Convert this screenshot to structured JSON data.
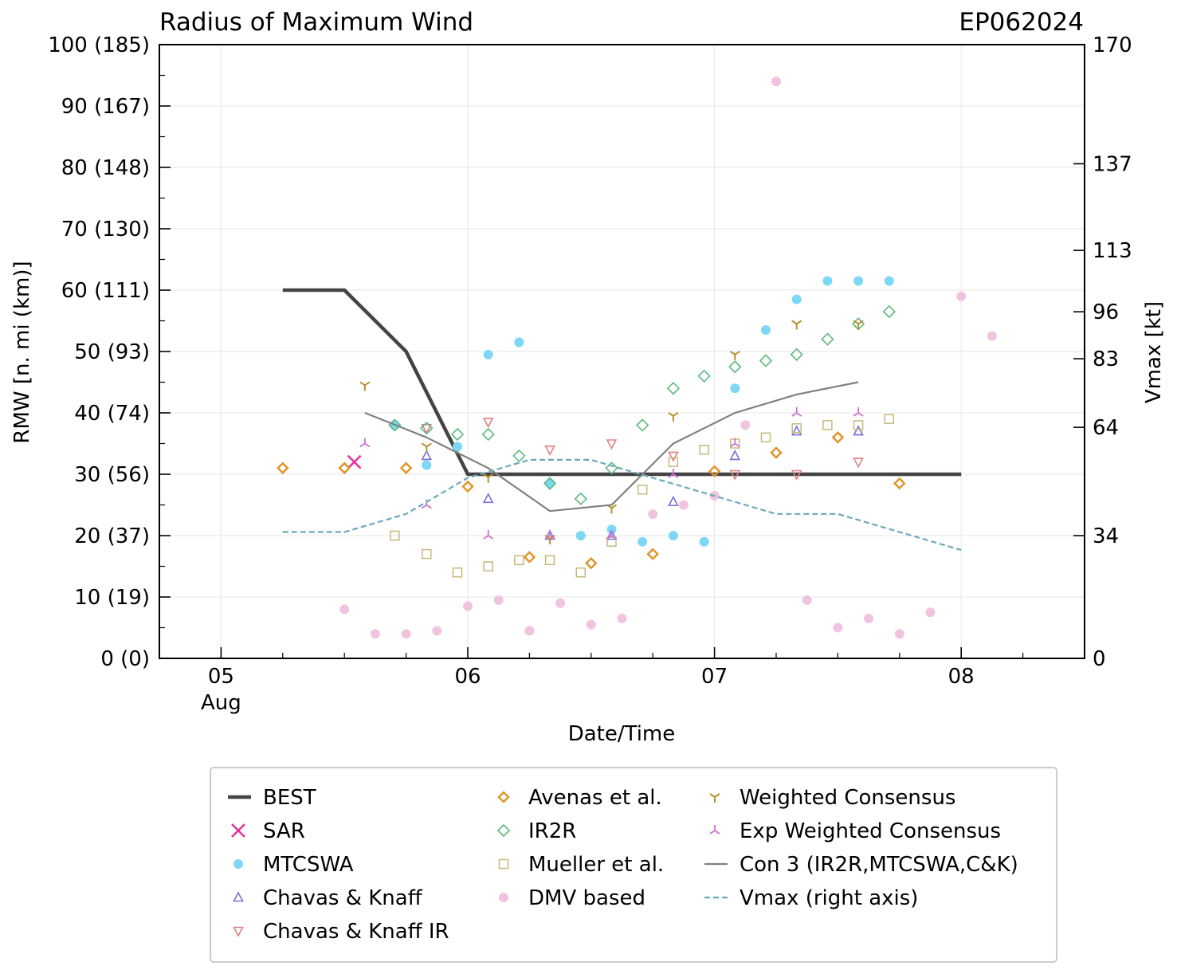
{
  "chart_data": {
    "type": "scatter",
    "title": "Radius of Maximum Wind",
    "storm_id": "EP062024",
    "xlabel": "Date/Time",
    "ylabel": "RMW [n. mi (km)]",
    "y2label": "Vmax [kt]",
    "x_unit": "days since 05 Aug 00Z",
    "xlim": [
      -0.25,
      3.5
    ],
    "ylim": [
      0,
      100
    ],
    "x_ticks": [
      {
        "x": 0,
        "label": "05",
        "sublabel": "Aug"
      },
      {
        "x": 1,
        "label": "06",
        "sublabel": ""
      },
      {
        "x": 2,
        "label": "07",
        "sublabel": ""
      },
      {
        "x": 3,
        "label": "08",
        "sublabel": ""
      }
    ],
    "y_ticks": [
      {
        "v": 0,
        "label": "0 (0)"
      },
      {
        "v": 10,
        "label": "10 (19)"
      },
      {
        "v": 20,
        "label": "20 (37)"
      },
      {
        "v": 30,
        "label": "30 (56)"
      },
      {
        "v": 40,
        "label": "40 (74)"
      },
      {
        "v": 50,
        "label": "50 (93)"
      },
      {
        "v": 60,
        "label": "60 (111)"
      },
      {
        "v": 70,
        "label": "70 (130)"
      },
      {
        "v": 80,
        "label": "80 (148)"
      },
      {
        "v": 90,
        "label": "90 (167)"
      },
      {
        "v": 100,
        "label": "100 (185)"
      }
    ],
    "y2lim": [
      0,
      170
    ],
    "y2_ticks": [
      {
        "v": 0,
        "label": "0"
      },
      {
        "v": 34,
        "label": "34"
      },
      {
        "v": 64,
        "label": "64"
      },
      {
        "v": 83,
        "label": "83"
      },
      {
        "v": 96,
        "label": "96"
      },
      {
        "v": 113,
        "label": "113"
      },
      {
        "v": 137,
        "label": "137"
      },
      {
        "v": 170,
        "label": "170"
      }
    ],
    "grid": true,
    "legend_position": "bottom",
    "series": [
      {
        "name": "BEST",
        "marker": "line",
        "color": "#444444",
        "x": [
          0.25,
          0.5,
          0.75,
          1.0,
          3.0
        ],
        "y": [
          60,
          60,
          50,
          30,
          30
        ]
      },
      {
        "name": "SAR",
        "marker": "x",
        "color": "#e8309a",
        "x": [
          0.54
        ],
        "y": [
          32
        ]
      },
      {
        "name": "MTCSWA",
        "marker": "dot",
        "color": "#7dd8f5",
        "x": [
          0.704,
          0.833,
          0.958,
          1.083,
          1.208,
          1.333,
          1.458,
          1.583,
          1.708,
          1.833,
          1.958,
          2.083,
          2.208,
          2.333,
          2.458,
          2.583,
          2.708
        ],
        "y": [
          38,
          31.5,
          34.5,
          49.5,
          51.5,
          28.5,
          20,
          21,
          19,
          20,
          19,
          44,
          53.5,
          58.5,
          61.5,
          61.5,
          61.5
        ]
      },
      {
        "name": "Chavas & Knaff",
        "marker": "tri-up",
        "color": "#7b6fd8",
        "x": [
          0.833,
          1.083,
          1.333,
          1.583,
          1.833,
          2.083,
          2.333,
          2.583
        ],
        "y": [
          33,
          26,
          20,
          20,
          25.5,
          33,
          37,
          37
        ]
      },
      {
        "name": "Chavas & Knaff IR",
        "marker": "tri-down",
        "color": "#e08080",
        "x": [
          0.833,
          1.083,
          1.333,
          1.583,
          1.833,
          2.083,
          2.333,
          2.583
        ],
        "y": [
          37.5,
          38.5,
          34,
          35,
          33,
          30,
          30,
          32
        ]
      },
      {
        "name": "Avenas et al.",
        "marker": "diamond",
        "color": "#e0952a",
        "x": [
          0.25,
          0.5,
          0.75,
          1.0,
          1.25,
          1.5,
          1.75,
          2.0,
          2.25,
          2.5,
          2.75
        ],
        "y": [
          31,
          31,
          31,
          28,
          16.5,
          15.5,
          17,
          30.5,
          33.5,
          36,
          28.5
        ]
      },
      {
        "name": "IR2R",
        "marker": "diamond-open",
        "color": "#5cb87a",
        "x": [
          0.704,
          0.833,
          0.958,
          1.083,
          1.208,
          1.333,
          1.458,
          1.583,
          1.708,
          1.833,
          1.958,
          2.083,
          2.208,
          2.333,
          2.458,
          2.583,
          2.708
        ],
        "y": [
          38,
          37.5,
          36.5,
          36.5,
          33,
          28.5,
          26,
          31,
          38,
          44,
          46,
          47.5,
          48.5,
          49.5,
          52,
          54.5,
          56.5
        ]
      },
      {
        "name": "Mueller et al.",
        "marker": "square",
        "color": "#c8b87a",
        "x": [
          0.704,
          0.833,
          0.958,
          1.083,
          1.208,
          1.333,
          1.458,
          1.583,
          1.708,
          1.833,
          1.958,
          2.083,
          2.208,
          2.333,
          2.458,
          2.583,
          2.708
        ],
        "y": [
          20,
          17,
          14,
          15,
          16,
          16,
          14,
          19,
          27.5,
          32,
          34,
          35,
          36,
          37.5,
          38,
          38,
          39
        ]
      },
      {
        "name": "DMV based",
        "marker": "dot",
        "color": "#f0c4e0",
        "x": [
          0.5,
          0.625,
          0.75,
          0.875,
          1.0,
          1.125,
          1.25,
          1.375,
          1.5,
          1.625,
          1.75,
          1.875,
          2.0,
          2.125,
          2.25,
          2.375,
          2.5,
          2.625,
          2.75,
          2.875,
          3.0,
          3.125
        ],
        "y": [
          8,
          4,
          4,
          4.5,
          8.5,
          9.5,
          4.5,
          9,
          5.5,
          6.5,
          23.5,
          25,
          26.5,
          38,
          94,
          9.5,
          5,
          6.5,
          4,
          7.5,
          59,
          52.5
        ]
      },
      {
        "name": "Weighted Consensus",
        "marker": "y-down",
        "color": "#b8902a",
        "x": [
          0.583,
          0.833,
          1.083,
          1.333,
          1.583,
          1.833,
          2.083,
          2.333,
          2.583
        ],
        "y": [
          44.5,
          34.5,
          29.5,
          19.5,
          24.5,
          39.5,
          49.5,
          54.5,
          54.5
        ]
      },
      {
        "name": "Exp Weighted Consensus",
        "marker": "y-up",
        "color": "#d070d0",
        "x": [
          0.583,
          0.833,
          1.083,
          1.333,
          1.583,
          1.833,
          2.083,
          2.333,
          2.583
        ],
        "y": [
          35,
          25,
          20,
          20,
          20,
          30,
          35,
          40,
          40
        ]
      },
      {
        "name": "Con 3 (IR2R,MTCSWA,C&K)",
        "marker": "line",
        "color": "#808080",
        "x": [
          0.583,
          0.833,
          0.958,
          1.083,
          1.333,
          1.583,
          1.833,
          2.083,
          2.333,
          2.583
        ],
        "y": [
          40,
          36,
          33.5,
          31,
          24,
          25,
          35,
          40,
          43,
          45
        ]
      },
      {
        "name": "Vmax (right axis)",
        "marker": "dashed",
        "color": "#6aaab8",
        "axis": "right",
        "x": [
          0.25,
          0.5,
          0.75,
          1.0,
          1.25,
          1.5,
          1.75,
          2.0,
          2.25,
          2.5,
          2.75,
          3.0
        ],
        "y": [
          35,
          35,
          40,
          50,
          55,
          55,
          50,
          45,
          40,
          40,
          35,
          30
        ]
      }
    ]
  },
  "legend": [
    "BEST",
    "SAR",
    "MTCSWA",
    "Chavas & Knaff",
    "Chavas & Knaff IR",
    "Avenas et al.",
    "IR2R",
    "Mueller et al.",
    "DMV based",
    "Weighted Consensus",
    "Exp Weighted Consensus",
    "Con 3 (IR2R,MTCSWA,C&K)",
    "Vmax (right axis)"
  ]
}
